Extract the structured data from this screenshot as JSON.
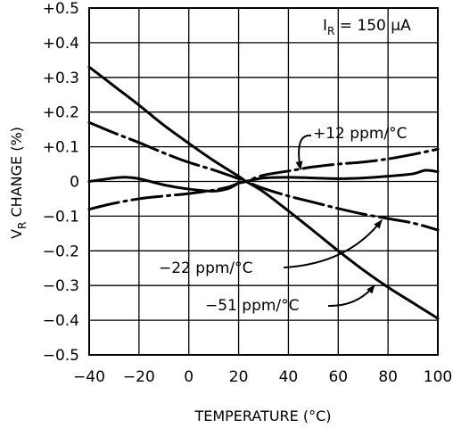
{
  "chart_data": {
    "type": "line",
    "title": "",
    "xlabel": "TEMPERATURE (°C)",
    "ylabel": "V_R CHANGE (%)",
    "xlim": [
      -40,
      100
    ],
    "ylim": [
      -0.5,
      0.5
    ],
    "x_ticks": [
      -40,
      -20,
      0,
      20,
      40,
      60,
      80,
      100
    ],
    "x_tick_labels": [
      "-40",
      "-20",
      "0",
      "20",
      "40",
      "60",
      "80",
      "100"
    ],
    "y_ticks": [
      0.5,
      0.4,
      0.3,
      0.2,
      0.1,
      0,
      -0.1,
      -0.2,
      -0.3,
      -0.4,
      -0.5
    ],
    "y_tick_labels": [
      "+0.5",
      "+0.4",
      "+0.3",
      "+0.2",
      "+0.1",
      "0",
      "-0.1",
      "-0.2",
      "-0.3",
      "-0.4",
      "-0.5"
    ],
    "grid": true,
    "condition": {
      "prefix": "I",
      "sub": "R",
      "suffix": " = 150 μA"
    },
    "series": [
      {
        "key": "s51",
        "style": "solid",
        "points": [
          [
            -40,
            0.33
          ],
          [
            -30,
            0.275
          ],
          [
            -20,
            0.22
          ],
          [
            -10,
            0.162
          ],
          [
            0,
            0.11
          ],
          [
            10,
            0.06
          ],
          [
            20,
            0.015
          ],
          [
            23,
            0.0
          ],
          [
            30,
            -0.03
          ],
          [
            40,
            -0.085
          ],
          [
            50,
            -0.142
          ],
          [
            60,
            -0.2
          ],
          [
            70,
            -0.255
          ],
          [
            80,
            -0.305
          ],
          [
            90,
            -0.35
          ],
          [
            100,
            -0.395
          ]
        ]
      },
      {
        "key": "s22",
        "style": "dashdot",
        "points": [
          [
            -40,
            0.17
          ],
          [
            -30,
            0.14
          ],
          [
            -20,
            0.112
          ],
          [
            -10,
            0.082
          ],
          [
            0,
            0.055
          ],
          [
            10,
            0.033
          ],
          [
            20,
            0.008
          ],
          [
            23,
            0.0
          ],
          [
            30,
            -0.02
          ],
          [
            40,
            -0.042
          ],
          [
            50,
            -0.06
          ],
          [
            60,
            -0.078
          ],
          [
            70,
            -0.094
          ],
          [
            80,
            -0.107
          ],
          [
            90,
            -0.12
          ],
          [
            100,
            -0.14
          ]
        ]
      },
      {
        "key": "s12",
        "style": "dashdot",
        "points": [
          [
            -40,
            -0.08
          ],
          [
            -30,
            -0.063
          ],
          [
            -20,
            -0.05
          ],
          [
            -10,
            -0.042
          ],
          [
            0,
            -0.035
          ],
          [
            10,
            -0.025
          ],
          [
            16,
            -0.016
          ],
          [
            20,
            -0.005
          ],
          [
            23,
            0.0
          ],
          [
            30,
            0.018
          ],
          [
            40,
            0.03
          ],
          [
            50,
            0.042
          ],
          [
            60,
            0.05
          ],
          [
            70,
            0.056
          ],
          [
            80,
            0.065
          ],
          [
            90,
            0.078
          ],
          [
            100,
            0.093
          ]
        ]
      },
      {
        "key": "s_flat",
        "style": "solid",
        "points": [
          [
            -40,
            0.0
          ],
          [
            -30,
            0.01
          ],
          [
            -25,
            0.012
          ],
          [
            -20,
            0.008
          ],
          [
            -10,
            -0.01
          ],
          [
            0,
            -0.022
          ],
          [
            10,
            -0.028
          ],
          [
            16,
            -0.02
          ],
          [
            20,
            -0.005
          ],
          [
            23,
            0.0
          ],
          [
            30,
            0.01
          ],
          [
            40,
            0.012
          ],
          [
            50,
            0.01
          ],
          [
            60,
            0.008
          ],
          [
            70,
            0.01
          ],
          [
            80,
            0.015
          ],
          [
            90,
            0.022
          ],
          [
            95,
            0.032
          ],
          [
            100,
            0.028
          ]
        ]
      }
    ],
    "annotations": [
      {
        "key": "a12",
        "text": "+12 ppm/°C",
        "anchor": [
          47,
          0.145
        ],
        "arrow_from": [
          47,
          0.145
        ],
        "arrow_to": [
          38,
          0.045
        ]
      },
      {
        "key": "a22",
        "text": "-22 ppm/°C",
        "anchor": [
          -16,
          -0.255
        ],
        "arrow_from": [
          45,
          -0.25
        ],
        "arrow_to": [
          70,
          -0.098
        ]
      },
      {
        "key": "a51",
        "text": "-51 ppm/°C",
        "anchor": [
          9,
          -0.35
        ],
        "arrow_from": [
          65,
          -0.35
        ],
        "arrow_to": [
          86,
          -0.3
        ]
      }
    ]
  }
}
